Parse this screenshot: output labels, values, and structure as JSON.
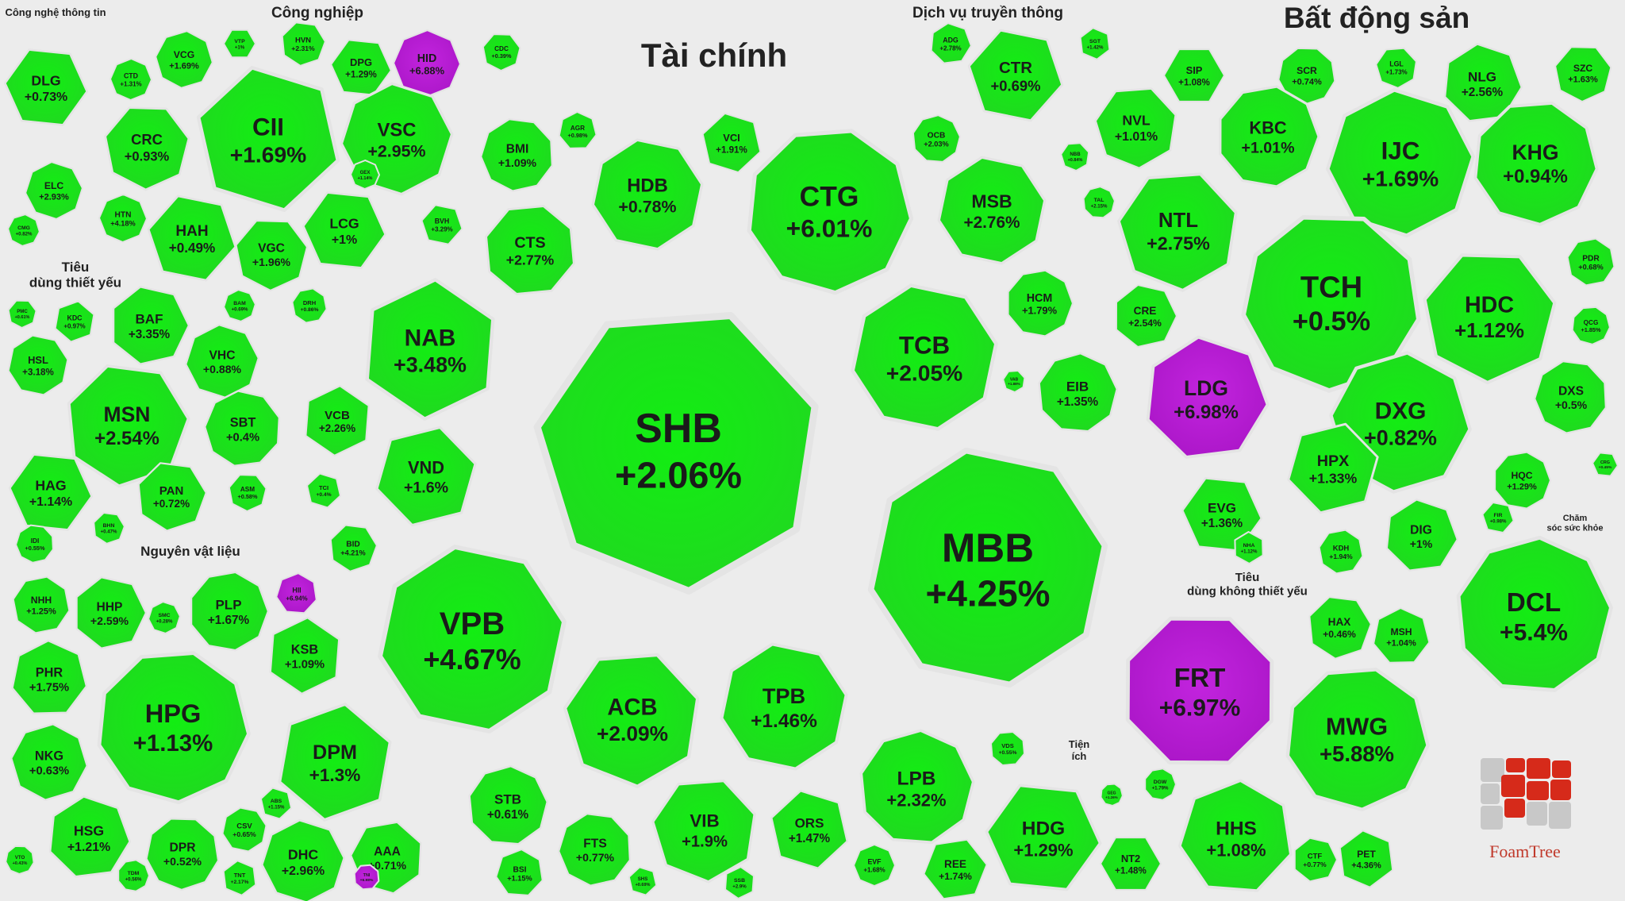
{
  "brand": {
    "name": "FoamTree"
  },
  "colors": {
    "up": "#1ee61e",
    "ceiling": "#b41ad2",
    "gap": "#ececec",
    "border": "#d8d8d8"
  },
  "chart_data": {
    "type": "treemap",
    "sectors": [
      {
        "name": "Công nghệ thông tin",
        "tickers": [
          {
            "ticker": "DLG",
            "change": "+0.73%",
            "color": "up"
          },
          {
            "ticker": "ELC",
            "change": "+2.93%",
            "color": "up"
          },
          {
            "ticker": "CMG",
            "change": "+0.82%",
            "color": "up"
          }
        ]
      },
      {
        "name": "Công nghiệp",
        "tickers": [
          {
            "ticker": "CII",
            "change": "+1.69%",
            "color": "up"
          },
          {
            "ticker": "VCG",
            "change": "+1.69%",
            "color": "up"
          },
          {
            "ticker": "VTP",
            "change": "+1%",
            "color": "up"
          },
          {
            "ticker": "HVN",
            "change": "+2.31%",
            "color": "up"
          },
          {
            "ticker": "DPG",
            "change": "+1.29%",
            "color": "up"
          },
          {
            "ticker": "HID",
            "change": "+6.88%",
            "color": "ceiling"
          },
          {
            "ticker": "CDC",
            "change": "+0.39%",
            "color": "up"
          },
          {
            "ticker": "CTD",
            "change": "+1.31%",
            "color": "up"
          },
          {
            "ticker": "CRC",
            "change": "+0.93%",
            "color": "up"
          },
          {
            "ticker": "VSC",
            "change": "+2.95%",
            "color": "up"
          },
          {
            "ticker": "HTN",
            "change": "+4.18%",
            "color": "up"
          },
          {
            "ticker": "HAH",
            "change": "+0.49%",
            "color": "up"
          },
          {
            "ticker": "VGC",
            "change": "+1.96%",
            "color": "up"
          },
          {
            "ticker": "LCG",
            "change": "+1%",
            "color": "up"
          },
          {
            "ticker": "GEX",
            "change": "+1.14%",
            "color": "up"
          },
          {
            "ticker": "BAM",
            "change": "+0.69%",
            "color": "up"
          },
          {
            "ticker": "DRH",
            "change": "+0.86%",
            "color": "up"
          }
        ]
      },
      {
        "name": "Tiêu dùng thiết yếu",
        "tickers": [
          {
            "ticker": "PMC",
            "change": "+0.61%",
            "color": "up"
          },
          {
            "ticker": "KDC",
            "change": "+0.97%",
            "color": "up"
          },
          {
            "ticker": "BAF",
            "change": "+3.35%",
            "color": "up"
          },
          {
            "ticker": "HSL",
            "change": "+3.18%",
            "color": "up"
          },
          {
            "ticker": "VHC",
            "change": "+0.88%",
            "color": "up"
          },
          {
            "ticker": "MSN",
            "change": "+2.54%",
            "color": "up"
          },
          {
            "ticker": "SBT",
            "change": "+0.4%",
            "color": "up"
          },
          {
            "ticker": "HAG",
            "change": "+1.14%",
            "color": "up"
          },
          {
            "ticker": "PAN",
            "change": "+0.72%",
            "color": "up"
          },
          {
            "ticker": "ASM",
            "change": "+0.58%",
            "color": "up"
          },
          {
            "ticker": "IDI",
            "change": "+0.55%",
            "color": "up"
          },
          {
            "ticker": "BHN",
            "change": "+0.47%",
            "color": "up"
          }
        ]
      },
      {
        "name": "Nguyên vật liệu",
        "tickers": [
          {
            "ticker": "NHH",
            "change": "+1.25%",
            "color": "up"
          },
          {
            "ticker": "HHP",
            "change": "+2.59%",
            "color": "up"
          },
          {
            "ticker": "SMC",
            "change": "+0.28%",
            "color": "up"
          },
          {
            "ticker": "PLP",
            "change": "+1.67%",
            "color": "up"
          },
          {
            "ticker": "HII",
            "change": "+6.94%",
            "color": "ceiling"
          },
          {
            "ticker": "PHR",
            "change": "+1.75%",
            "color": "up"
          },
          {
            "ticker": "KSB",
            "change": "+1.09%",
            "color": "up"
          },
          {
            "ticker": "HPG",
            "change": "+1.13%",
            "color": "up"
          },
          {
            "ticker": "DPM",
            "change": "+1.3%",
            "color": "up"
          },
          {
            "ticker": "NKG",
            "change": "+0.63%",
            "color": "up"
          },
          {
            "ticker": "HSG",
            "change": "+1.21%",
            "color": "up"
          },
          {
            "ticker": "DPR",
            "change": "+0.52%",
            "color": "up"
          },
          {
            "ticker": "CSV",
            "change": "+0.65%",
            "color": "up"
          },
          {
            "ticker": "ABS",
            "change": "+1.15%",
            "color": "up"
          },
          {
            "ticker": "DHC",
            "change": "+2.96%",
            "color": "up"
          },
          {
            "ticker": "AAA",
            "change": "+0.71%",
            "color": "up"
          },
          {
            "ticker": "TNI",
            "change": "+6.98%",
            "color": "ceiling"
          },
          {
            "ticker": "VTO",
            "change": "+0.43%",
            "color": "up"
          },
          {
            "ticker": "TNT",
            "change": "+2.17%",
            "color": "up"
          },
          {
            "ticker": "TDM",
            "change": "+0.56%",
            "color": "up"
          }
        ]
      },
      {
        "name": "Tài chính",
        "tickers": [
          {
            "ticker": "BMI",
            "change": "+1.09%",
            "color": "up"
          },
          {
            "ticker": "AGR",
            "change": "+0.98%",
            "color": "up"
          },
          {
            "ticker": "HDB",
            "change": "+0.78%",
            "color": "up"
          },
          {
            "ticker": "VCI",
            "change": "+1.91%",
            "color": "up"
          },
          {
            "ticker": "CTG",
            "change": "+6.01%",
            "color": "up"
          },
          {
            "ticker": "OCB",
            "change": "+2.03%",
            "color": "up"
          },
          {
            "ticker": "MSB",
            "change": "+2.76%",
            "color": "up"
          },
          {
            "ticker": "CTS",
            "change": "+2.77%",
            "color": "up"
          },
          {
            "ticker": "BVH",
            "change": "+3.29%",
            "color": "up"
          },
          {
            "ticker": "NAB",
            "change": "+3.48%",
            "color": "up"
          },
          {
            "ticker": "SHB",
            "change": "+2.06%",
            "color": "up"
          },
          {
            "ticker": "TCB",
            "change": "+2.05%",
            "color": "up"
          },
          {
            "ticker": "HCM",
            "change": "+1.79%",
            "color": "up"
          },
          {
            "ticker": "EIB",
            "change": "+1.35%",
            "color": "up"
          },
          {
            "ticker": "VAB",
            "change": "+1.88%",
            "color": "up"
          },
          {
            "ticker": "VCB",
            "change": "+2.26%",
            "color": "up"
          },
          {
            "ticker": "VND",
            "change": "+1.6%",
            "color": "up"
          },
          {
            "ticker": "TCI",
            "change": "+0.4%",
            "color": "up"
          },
          {
            "ticker": "BID",
            "change": "+4.21%",
            "color": "up"
          },
          {
            "ticker": "MBB",
            "change": "+4.25%",
            "color": "up"
          },
          {
            "ticker": "VPB",
            "change": "+4.67%",
            "color": "up"
          },
          {
            "ticker": "ACB",
            "change": "+2.09%",
            "color": "up"
          },
          {
            "ticker": "TPB",
            "change": "+1.46%",
            "color": "up"
          },
          {
            "ticker": "LPB",
            "change": "+2.32%",
            "color": "up"
          },
          {
            "ticker": "STB",
            "change": "+0.61%",
            "color": "up"
          },
          {
            "ticker": "FTS",
            "change": "+0.77%",
            "color": "up"
          },
          {
            "ticker": "VIB",
            "change": "+1.9%",
            "color": "up"
          },
          {
            "ticker": "ORS",
            "change": "+1.47%",
            "color": "up"
          },
          {
            "ticker": "BSI",
            "change": "+1.15%",
            "color": "up"
          },
          {
            "ticker": "SHS",
            "change": "+0.69%",
            "color": "up"
          },
          {
            "ticker": "SSB",
            "change": "+2.9%",
            "color": "up"
          },
          {
            "ticker": "EVF",
            "change": "+1.68%",
            "color": "up"
          },
          {
            "ticker": "VDS",
            "change": "+0.55%",
            "color": "up"
          }
        ]
      },
      {
        "name": "Dịch vụ truyền thông",
        "tickers": [
          {
            "ticker": "ADG",
            "change": "+2.78%",
            "color": "up"
          },
          {
            "ticker": "CTR",
            "change": "+0.69%",
            "color": "up"
          },
          {
            "ticker": "SGT",
            "change": "+1.42%",
            "color": "up"
          }
        ]
      },
      {
        "name": "Bất động sản",
        "tickers": [
          {
            "ticker": "SIP",
            "change": "+1.08%",
            "color": "up"
          },
          {
            "ticker": "SCR",
            "change": "+0.74%",
            "color": "up"
          },
          {
            "ticker": "LGL",
            "change": "+1.73%",
            "color": "up"
          },
          {
            "ticker": "NLG",
            "change": "+2.56%",
            "color": "up"
          },
          {
            "ticker": "SZC",
            "change": "+1.63%",
            "color": "up"
          },
          {
            "ticker": "NVL",
            "change": "+1.01%",
            "color": "up"
          },
          {
            "ticker": "KBC",
            "change": "+1.01%",
            "color": "up"
          },
          {
            "ticker": "IJC",
            "change": "+1.69%",
            "color": "up"
          },
          {
            "ticker": "KHG",
            "change": "+0.94%",
            "color": "up"
          },
          {
            "ticker": "NBB",
            "change": "+0.84%",
            "color": "up"
          },
          {
            "ticker": "TAL",
            "change": "+2.15%",
            "color": "up"
          },
          {
            "ticker": "NTL",
            "change": "+2.75%",
            "color": "up"
          },
          {
            "ticker": "TCH",
            "change": "+0.5%",
            "color": "up"
          },
          {
            "ticker": "HDC",
            "change": "+1.12%",
            "color": "up"
          },
          {
            "ticker": "PDR",
            "change": "+0.68%",
            "color": "up"
          },
          {
            "ticker": "QCG",
            "change": "+1.85%",
            "color": "up"
          },
          {
            "ticker": "CRE",
            "change": "+2.54%",
            "color": "up"
          },
          {
            "ticker": "LDG",
            "change": "+6.98%",
            "color": "ceiling"
          },
          {
            "ticker": "DXG",
            "change": "+0.82%",
            "color": "up"
          },
          {
            "ticker": "DXS",
            "change": "+0.5%",
            "color": "up"
          },
          {
            "ticker": "HPX",
            "change": "+1.33%",
            "color": "up"
          },
          {
            "ticker": "EVG",
            "change": "+1.36%",
            "color": "up"
          },
          {
            "ticker": "HQC",
            "change": "+1.29%",
            "color": "up"
          },
          {
            "ticker": "CRG",
            "change": "+0.45%",
            "color": "up"
          },
          {
            "ticker": "DIG",
            "change": "+1%",
            "color": "up"
          },
          {
            "ticker": "FIR",
            "change": "+0.98%",
            "color": "up"
          },
          {
            "ticker": "NHA",
            "change": "+1.12%",
            "color": "up"
          },
          {
            "ticker": "KDH",
            "change": "+1.94%",
            "color": "up"
          }
        ]
      },
      {
        "name": "Chăm sóc sức khỏe",
        "tickers": [
          {
            "ticker": "DCL",
            "change": "+5.4%",
            "color": "up"
          }
        ]
      },
      {
        "name": "Tiêu dùng không thiết yếu",
        "tickers": [
          {
            "ticker": "HAX",
            "change": "+0.46%",
            "color": "up"
          },
          {
            "ticker": "MSH",
            "change": "+1.04%",
            "color": "up"
          },
          {
            "ticker": "FRT",
            "change": "+6.97%",
            "color": "ceiling"
          },
          {
            "ticker": "MWG",
            "change": "+5.88%",
            "color": "up"
          },
          {
            "ticker": "DGW",
            "change": "+1.79%",
            "color": "up"
          },
          {
            "ticker": "HHS",
            "change": "+1.08%",
            "color": "up"
          },
          {
            "ticker": "CTF",
            "change": "+0.77%",
            "color": "up"
          },
          {
            "ticker": "PET",
            "change": "+4.36%",
            "color": "up"
          }
        ]
      },
      {
        "name": "Tiện ích",
        "tickers": [
          {
            "ticker": "HDG",
            "change": "+1.29%",
            "color": "up"
          },
          {
            "ticker": "REE",
            "change": "+1.74%",
            "color": "up"
          },
          {
            "ticker": "NT2",
            "change": "+1.48%",
            "color": "up"
          },
          {
            "ticker": "GEG",
            "change": "+1.26%",
            "color": "up"
          }
        ]
      }
    ]
  }
}
